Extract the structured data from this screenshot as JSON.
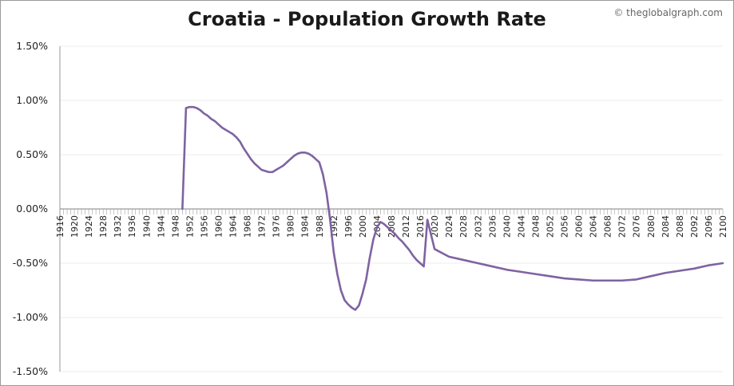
{
  "credit": "© theglobalgraph.com",
  "chart_data": {
    "type": "line",
    "title": "Croatia - Population Growth Rate",
    "xlabel": "",
    "ylabel": "",
    "xlim": [
      1916,
      2100
    ],
    "ylim": [
      -1.5,
      1.5
    ],
    "grid": true,
    "legend": "none",
    "line_color": "#7e63a1",
    "y_ticks": [
      1.5,
      1.0,
      0.5,
      0.0,
      -0.5,
      -1.0,
      -1.5
    ],
    "y_tick_labels": [
      "1.50%",
      "1.00%",
      "0.50%",
      "0.00%",
      "-0.50%",
      "-1.00%",
      "-1.50%"
    ],
    "x_ticks": [
      1916,
      1920,
      1924,
      1928,
      1932,
      1936,
      1940,
      1944,
      1948,
      1952,
      1956,
      1960,
      1964,
      1968,
      1972,
      1976,
      1980,
      1984,
      1988,
      1992,
      1996,
      2000,
      2004,
      2008,
      2012,
      2016,
      2020,
      2024,
      2028,
      2032,
      2036,
      2040,
      2044,
      2048,
      2052,
      2056,
      2060,
      2064,
      2068,
      2072,
      2076,
      2080,
      2084,
      2088,
      2092,
      2096,
      2100
    ],
    "series": [
      {
        "name": "Croatia",
        "x": [
          1950,
          1951,
          1952,
          1953,
          1954,
          1955,
          1956,
          1957,
          1958,
          1959,
          1960,
          1961,
          1962,
          1963,
          1964,
          1965,
          1966,
          1967,
          1968,
          1969,
          1970,
          1971,
          1972,
          1973,
          1974,
          1975,
          1976,
          1977,
          1978,
          1979,
          1980,
          1981,
          1982,
          1983,
          1984,
          1985,
          1986,
          1987,
          1988,
          1989,
          1990,
          1991,
          1992,
          1993,
          1994,
          1995,
          1996,
          1997,
          1998,
          1999,
          2000,
          2001,
          2002,
          2003,
          2004,
          2005,
          2006,
          2007,
          2008,
          2009,
          2010,
          2011,
          2012,
          2013,
          2014,
          2015,
          2016,
          2017,
          2018,
          2020,
          2024,
          2028,
          2032,
          2036,
          2040,
          2044,
          2048,
          2052,
          2056,
          2060,
          2064,
          2068,
          2072,
          2076,
          2080,
          2084,
          2088,
          2092,
          2096,
          2100
        ],
        "values": [
          0.0,
          0.93,
          0.94,
          0.94,
          0.93,
          0.91,
          0.88,
          0.86,
          0.83,
          0.81,
          0.78,
          0.75,
          0.73,
          0.71,
          0.69,
          0.66,
          0.62,
          0.56,
          0.51,
          0.46,
          0.42,
          0.39,
          0.36,
          0.35,
          0.34,
          0.34,
          0.36,
          0.38,
          0.4,
          0.43,
          0.46,
          0.49,
          0.51,
          0.52,
          0.52,
          0.51,
          0.49,
          0.46,
          0.43,
          0.32,
          0.15,
          -0.1,
          -0.4,
          -0.6,
          -0.75,
          -0.84,
          -0.88,
          -0.91,
          -0.93,
          -0.89,
          -0.78,
          -0.65,
          -0.45,
          -0.28,
          -0.17,
          -0.12,
          -0.14,
          -0.17,
          -0.2,
          -0.23,
          -0.27,
          -0.3,
          -0.34,
          -0.38,
          -0.43,
          -0.47,
          -0.5,
          -0.53,
          -0.1,
          -0.37,
          -0.44,
          -0.47,
          -0.5,
          -0.53,
          -0.56,
          -0.58,
          -0.6,
          -0.62,
          -0.64,
          -0.65,
          -0.66,
          -0.66,
          -0.66,
          -0.65,
          -0.62,
          -0.59,
          -0.57,
          -0.55,
          -0.52,
          -0.5
        ]
      }
    ]
  }
}
